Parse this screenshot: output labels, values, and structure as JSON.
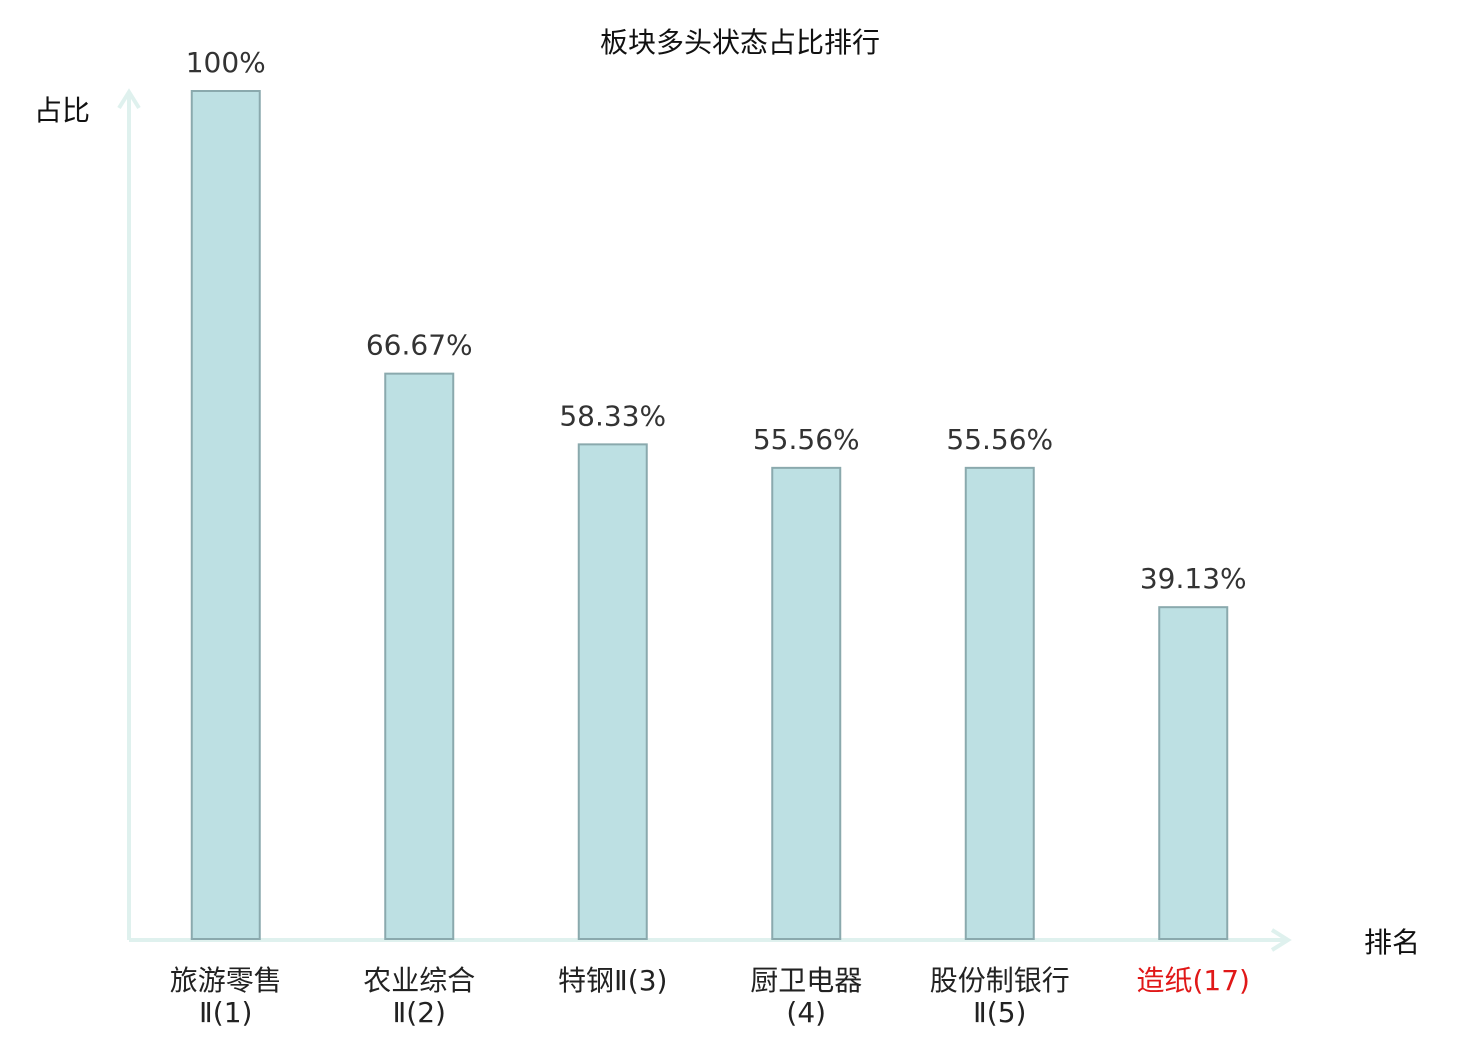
{
  "chart_data": {
    "type": "bar",
    "title": "板块多头状态占比排行",
    "y_label": "占比",
    "x_label": "排名",
    "categories": [
      "旅游零售Ⅱ(1)",
      "农业综合Ⅱ(2)",
      "特钢Ⅱ(3)",
      "厨卫电器(4)",
      "股份制银行Ⅱ(5)",
      "造纸(17)"
    ],
    "values": [
      100,
      66.67,
      58.33,
      55.56,
      55.56,
      39.13
    ],
    "value_labels": [
      "100%",
      "66.67%",
      "58.33%",
      "55.56%",
      "55.56%",
      "39.13%"
    ],
    "color": "#bde0e3",
    "edge_color": "#8aa9ad",
    "label_colors": [
      "#222222",
      "#222222",
      "#222222",
      "#222222",
      "#222222",
      "#e01818"
    ],
    "ylim": [
      0,
      100
    ]
  }
}
